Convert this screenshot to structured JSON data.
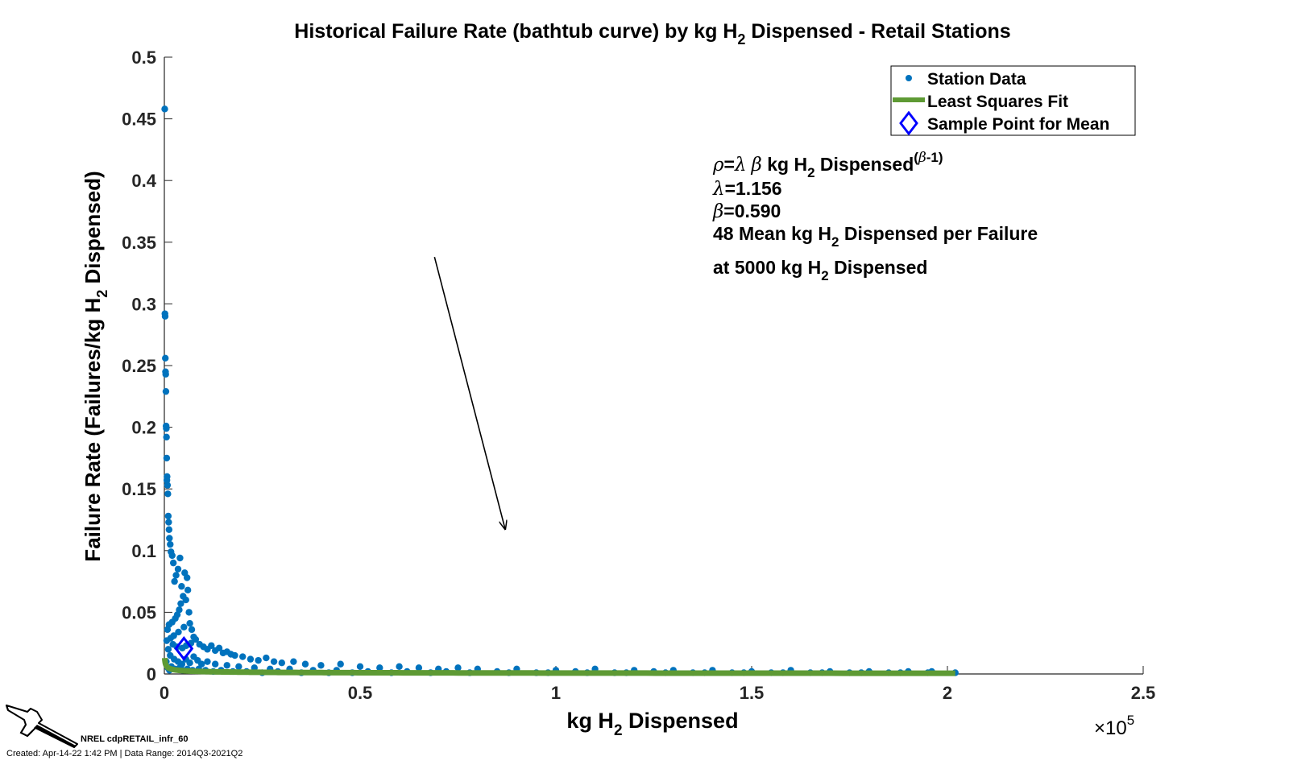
{
  "chart_data": {
    "type": "scatter",
    "title_parts": {
      "pre": "Historical Failure Rate (bathtub curve) by kg H",
      "sub": "2",
      "post": " Dispensed - Retail Stations"
    },
    "xlabel_parts": {
      "pre": "kg H",
      "sub": "2",
      "post": " Dispensed"
    },
    "ylabel_parts": {
      "pre": "Failure Rate (Failures/kg H",
      "sub": "2",
      "post": " Dispensed)"
    },
    "xlim": [
      0,
      250000
    ],
    "ylim": [
      0,
      0.5
    ],
    "x_ticks": [
      0,
      50000,
      100000,
      150000,
      200000,
      250000
    ],
    "x_tick_labels": [
      "0",
      "0.5",
      "1",
      "1.5",
      "2",
      "2.5"
    ],
    "x_exponent_parts": {
      "base": "×10",
      "exp": "5"
    },
    "y_ticks": [
      0,
      0.05,
      0.1,
      0.15,
      0.2,
      0.25,
      0.3,
      0.35,
      0.4,
      0.45,
      0.5
    ],
    "y_tick_labels": [
      "0",
      "0.05",
      "0.1",
      "0.15",
      "0.2",
      "0.25",
      "0.3",
      "0.35",
      "0.4",
      "0.45",
      "0.5"
    ],
    "legend_position": "top-right",
    "legend": [
      {
        "label": "Station Data",
        "marker": "dot",
        "color": "#0072BD"
      },
      {
        "label": "Least Squares Fit",
        "marker": "line",
        "color": "#5E9A34"
      },
      {
        "label": "Sample Point for Mean",
        "marker": "diamond",
        "color": "#0000FF"
      }
    ],
    "series": [
      {
        "name": "Station Data",
        "type": "scatter",
        "color": "#0072BD",
        "points": [
          [
            100,
            0.458
          ],
          [
            150,
            0.292
          ],
          [
            200,
            0.29
          ],
          [
            250,
            0.256
          ],
          [
            300,
            0.245
          ],
          [
            350,
            0.243
          ],
          [
            400,
            0.229
          ],
          [
            450,
            0.201
          ],
          [
            500,
            0.199
          ],
          [
            550,
            0.192
          ],
          [
            600,
            0.175
          ],
          [
            700,
            0.16
          ],
          [
            650,
            0.157
          ],
          [
            800,
            0.153
          ],
          [
            900,
            0.146
          ],
          [
            1000,
            0.128
          ],
          [
            1100,
            0.123
          ],
          [
            1200,
            0.117
          ],
          [
            1300,
            0.11
          ],
          [
            1500,
            0.105
          ],
          [
            1700,
            0.099
          ],
          [
            2000,
            0.096
          ],
          [
            2300,
            0.09
          ],
          [
            4000,
            0.094
          ],
          [
            3500,
            0.085
          ],
          [
            3000,
            0.08
          ],
          [
            2600,
            0.075
          ],
          [
            4400,
            0.071
          ],
          [
            5200,
            0.082
          ],
          [
            5800,
            0.078
          ],
          [
            6000,
            0.068
          ],
          [
            5500,
            0.06
          ],
          [
            4800,
            0.063
          ],
          [
            4200,
            0.057
          ],
          [
            3800,
            0.052
          ],
          [
            3300,
            0.048
          ],
          [
            6300,
            0.05
          ],
          [
            2800,
            0.045
          ],
          [
            2000,
            0.042
          ],
          [
            1200,
            0.04
          ],
          [
            800,
            0.036
          ],
          [
            6500,
            0.041
          ],
          [
            7000,
            0.036
          ],
          [
            5000,
            0.038
          ],
          [
            3600,
            0.034
          ],
          [
            2400,
            0.031
          ],
          [
            1600,
            0.029
          ],
          [
            600,
            0.027
          ],
          [
            7500,
            0.03
          ],
          [
            8000,
            0.028
          ],
          [
            6800,
            0.025
          ],
          [
            5600,
            0.023
          ],
          [
            4600,
            0.021
          ],
          [
            3200,
            0.022
          ],
          [
            2200,
            0.024
          ],
          [
            1000,
            0.02
          ],
          [
            9000,
            0.024
          ],
          [
            10000,
            0.022
          ],
          [
            11000,
            0.02
          ],
          [
            12000,
            0.023
          ],
          [
            13000,
            0.019
          ],
          [
            14000,
            0.021
          ],
          [
            15000,
            0.017
          ],
          [
            16000,
            0.018
          ],
          [
            17000,
            0.016
          ],
          [
            18000,
            0.015
          ],
          [
            20000,
            0.014
          ],
          [
            22000,
            0.012
          ],
          [
            24000,
            0.011
          ],
          [
            26000,
            0.013
          ],
          [
            28000,
            0.01
          ],
          [
            30000,
            0.009
          ],
          [
            33000,
            0.01
          ],
          [
            36000,
            0.008
          ],
          [
            40000,
            0.007
          ],
          [
            45000,
            0.008
          ],
          [
            50000,
            0.006
          ],
          [
            55000,
            0.005
          ],
          [
            60000,
            0.006
          ],
          [
            65000,
            0.005
          ],
          [
            70000,
            0.004
          ],
          [
            75000,
            0.005
          ],
          [
            80000,
            0.004
          ],
          [
            90000,
            0.004
          ],
          [
            100000,
            0.003
          ],
          [
            110000,
            0.004
          ],
          [
            120000,
            0.003
          ],
          [
            130000,
            0.003
          ],
          [
            140000,
            0.003
          ],
          [
            150000,
            0.002
          ],
          [
            160000,
            0.003
          ],
          [
            170000,
            0.002
          ],
          [
            180000,
            0.002
          ],
          [
            190000,
            0.002
          ],
          [
            196000,
            0.002
          ],
          [
            202000,
            0.001
          ],
          [
            1500,
            0.015
          ],
          [
            2500,
            0.012
          ],
          [
            3500,
            0.01
          ],
          [
            4500,
            0.008
          ],
          [
            5500,
            0.012
          ],
          [
            6500,
            0.009
          ],
          [
            7500,
            0.014
          ],
          [
            8500,
            0.011
          ],
          [
            9500,
            0.008
          ],
          [
            11000,
            0.01
          ],
          [
            13000,
            0.008
          ],
          [
            16000,
            0.007
          ],
          [
            19000,
            0.006
          ],
          [
            23000,
            0.005
          ],
          [
            27000,
            0.004
          ],
          [
            32000,
            0.004
          ],
          [
            38000,
            0.003
          ],
          [
            44000,
            0.003
          ],
          [
            52000,
            0.002
          ],
          [
            62000,
            0.002
          ],
          [
            72000,
            0.002
          ],
          [
            85000,
            0.002
          ],
          [
            95000,
            0.001
          ],
          [
            105000,
            0.002
          ],
          [
            115000,
            0.001
          ],
          [
            125000,
            0.002
          ],
          [
            135000,
            0.001
          ],
          [
            145000,
            0.001
          ],
          [
            155000,
            0.001
          ],
          [
            165000,
            0.001
          ],
          [
            175000,
            0.001
          ],
          [
            185000,
            0.001
          ],
          [
            195000,
            0.001
          ],
          [
            500,
            0.01
          ],
          [
            900,
            0.005
          ],
          [
            1300,
            0.003
          ],
          [
            1800,
            0.006
          ],
          [
            2700,
            0.004
          ],
          [
            3900,
            0.005
          ],
          [
            4700,
            0.003
          ],
          [
            5900,
            0.004
          ],
          [
            7200,
            0.003
          ],
          [
            8800,
            0.004
          ],
          [
            10500,
            0.003
          ],
          [
            12500,
            0.002
          ],
          [
            14500,
            0.003
          ],
          [
            17500,
            0.002
          ],
          [
            21000,
            0.002
          ],
          [
            25000,
            0.001
          ],
          [
            29000,
            0.002
          ],
          [
            35000,
            0.001
          ],
          [
            42000,
            0.001
          ],
          [
            48000,
            0.001
          ],
          [
            58000,
            0.001
          ],
          [
            68000,
            0.001
          ],
          [
            78000,
            0.001
          ],
          [
            88000,
            0.001
          ],
          [
            98000,
            0.001
          ],
          [
            108000,
            0.001
          ],
          [
            118000,
            0.001
          ],
          [
            128000,
            0.001
          ],
          [
            138000,
            0.001
          ],
          [
            148000,
            0.001
          ],
          [
            158000,
            0.001
          ],
          [
            168000,
            0.001
          ],
          [
            178000,
            0.001
          ],
          [
            188000,
            0.001
          ]
        ]
      },
      {
        "name": "Least Squares Fit",
        "type": "line",
        "color": "#5E9A34",
        "lambda": 1.156,
        "beta": 0.59,
        "x_range": [
          100,
          202000
        ]
      },
      {
        "name": "Sample Point for Mean",
        "type": "marker",
        "color": "#0000FF",
        "points": [
          [
            5000,
            0.0206
          ]
        ]
      }
    ],
    "annotation": {
      "formula_parts": {
        "rho": "ρ",
        "eq": "=",
        "lam": "λ",
        "beta": "β",
        "t1": " kg H",
        "sub": "2",
        "t2": " Dispensed",
        "sup_pre": "(",
        "sup_beta": "β",
        "sup_post": "-1)"
      },
      "lambda_parts": {
        "sym": "λ",
        "text": "=1.156"
      },
      "beta_parts": {
        "sym": "β",
        "text": "=0.590"
      },
      "mean_line_parts": {
        "pre": "48 Mean kg H",
        "sub": "2",
        "post": " Dispensed per Failure"
      },
      "at_line_parts": {
        "pre": "at 5000 kg H",
        "sub": "2",
        "post": " Dispensed"
      },
      "arrow_from": [
        69000,
        0.338
      ],
      "arrow_to": [
        87000,
        0.118
      ]
    }
  },
  "footer": {
    "id_text": "NREL cdpRETAIL_infr_60",
    "created_text": "Created: Apr-14-22  1:42 PM | Data Range: 2014Q3-2021Q2"
  }
}
